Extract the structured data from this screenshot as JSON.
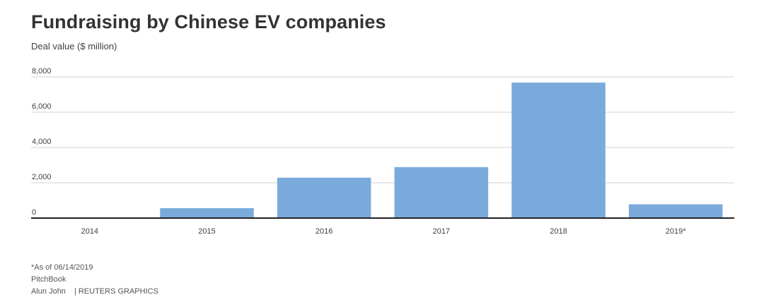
{
  "chart_data": {
    "type": "bar",
    "title": "Fundraising by Chinese EV companies",
    "subtitle": "Deal value ($ million)",
    "xlabel": "",
    "ylabel": "",
    "categories": [
      "2014",
      "2015",
      "2016",
      "2017",
      "2018",
      "2019*"
    ],
    "values": [
      0,
      560,
      2290,
      2890,
      7680,
      780
    ],
    "ylim": [
      0,
      8000
    ],
    "yticks": [
      0,
      2000,
      4000,
      6000,
      8000
    ],
    "ytick_labels": [
      "0",
      "2,000",
      "4,000",
      "6,000",
      "8,000"
    ],
    "grid": true,
    "legend": "none",
    "bar_color": "#7aaadb",
    "grid_color": "#d0d0d0",
    "axis_color": "#222222"
  },
  "footer": {
    "note": "*As of 06/14/2019",
    "source": "PitchBook",
    "author": "Alun John",
    "credit": "| REUTERS GRAPHICS"
  }
}
